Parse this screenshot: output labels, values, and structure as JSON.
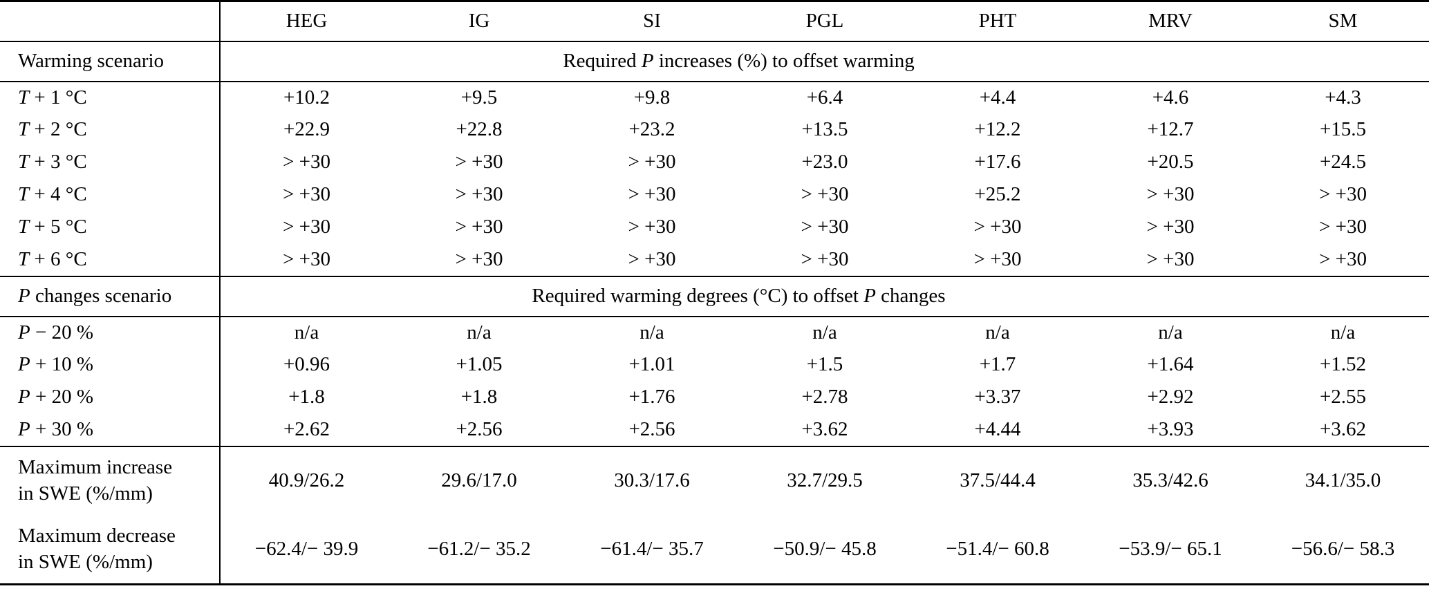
{
  "table": {
    "columns": [
      "HEG",
      "IG",
      "SI",
      "PGL",
      "PHT",
      "MRV",
      "SM"
    ],
    "warming": {
      "label": {
        "pre": "Warming scenario",
        "var": "",
        "post": ""
      },
      "span_header": {
        "pre": "Required ",
        "var": "P",
        "post": " increases (%) to offset warming"
      },
      "rows": [
        {
          "label": {
            "var": "T",
            "rest": " + 1 °C"
          },
          "values": [
            "+10.2",
            "+9.5",
            "+9.8",
            "+6.4",
            "+4.4",
            "+4.6",
            "+4.3"
          ]
        },
        {
          "label": {
            "var": "T",
            "rest": " + 2 °C"
          },
          "values": [
            "+22.9",
            "+22.8",
            "+23.2",
            "+13.5",
            "+12.2",
            "+12.7",
            "+15.5"
          ]
        },
        {
          "label": {
            "var": "T",
            "rest": " + 3 °C"
          },
          "values": [
            "> +30",
            "> +30",
            "> +30",
            "+23.0",
            "+17.6",
            "+20.5",
            "+24.5"
          ]
        },
        {
          "label": {
            "var": "T",
            "rest": " + 4 °C"
          },
          "values": [
            "> +30",
            "> +30",
            "> +30",
            "> +30",
            "+25.2",
            "> +30",
            "> +30"
          ]
        },
        {
          "label": {
            "var": "T",
            "rest": " + 5 °C"
          },
          "values": [
            "> +30",
            "> +30",
            "> +30",
            "> +30",
            "> +30",
            "> +30",
            "> +30"
          ]
        },
        {
          "label": {
            "var": "T",
            "rest": " + 6 °C"
          },
          "values": [
            "> +30",
            "> +30",
            "> +30",
            "> +30",
            "> +30",
            "> +30",
            "> +30"
          ]
        }
      ]
    },
    "pchanges": {
      "label": {
        "pre": "",
        "var": "P",
        "post": " changes scenario"
      },
      "span_header": {
        "pre": "Required warming degrees (°C) to offset ",
        "var": "P",
        "post": " changes"
      },
      "rows": [
        {
          "label": {
            "var": "P",
            "rest": " − 20 %"
          },
          "values": [
            "n/a",
            "n/a",
            "n/a",
            "n/a",
            "n/a",
            "n/a",
            "n/a"
          ]
        },
        {
          "label": {
            "var": "P",
            "rest": " + 10 %"
          },
          "values": [
            "+0.96",
            "+1.05",
            "+1.01",
            "+1.5",
            "+1.7",
            "+1.64",
            "+1.52"
          ]
        },
        {
          "label": {
            "var": "P",
            "rest": " + 20 %"
          },
          "values": [
            "+1.8",
            "+1.8",
            "+1.76",
            "+2.78",
            "+3.37",
            "+2.92",
            "+2.55"
          ]
        },
        {
          "label": {
            "var": "P",
            "rest": " + 30 %"
          },
          "values": [
            "+2.62",
            "+2.56",
            "+2.56",
            "+3.62",
            "+4.44",
            "+3.93",
            "+3.62"
          ]
        }
      ]
    },
    "swe": {
      "rows": [
        {
          "label_line1": "Maximum increase",
          "label_line2": "in SWE (%/mm)",
          "values": [
            "40.9/26.2",
            "29.6/17.0",
            "30.3/17.6",
            "32.7/29.5",
            "37.5/44.4",
            "35.3/42.6",
            "34.1/35.0"
          ]
        },
        {
          "label_line1": "Maximum decrease",
          "label_line2": "in SWE (%/mm)",
          "values": [
            "−62.4/− 39.9",
            "−61.2/− 35.2",
            "−61.4/− 35.7",
            "−50.9/− 45.8",
            "−51.4/− 60.8",
            "−53.9/− 65.1",
            "−56.6/− 58.3"
          ]
        }
      ]
    }
  }
}
